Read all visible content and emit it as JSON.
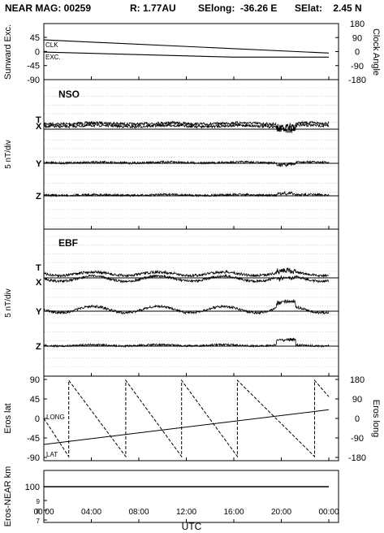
{
  "header": {
    "label": "NEAR MAG: 00259",
    "r": "R: 1.77AU",
    "selong": "SElong:  -36.26 E",
    "selat": "SElat:    2.45 N"
  },
  "x_axis": {
    "label": "UTC",
    "ticks": [
      "00:00",
      "04:00",
      "08:00",
      "12:00",
      "16:00",
      "20:00",
      "00:00"
    ]
  },
  "chart_data": [
    {
      "type": "line",
      "panel": "angles",
      "ylabel": "Sunward Exc.",
      "ylabel_right": "Clock Angle",
      "yticks_left": [
        "45",
        "0",
        "-45",
        "-90"
      ],
      "yticks_right": [
        "180",
        "90",
        "0",
        "-90",
        "-180"
      ],
      "ylim": [
        -90,
        90
      ],
      "series": [
        {
          "name": "CLK",
          "x": [
            0,
            24
          ],
          "y": [
            37,
            -5
          ]
        },
        {
          "name": "EXC.",
          "x": [
            0,
            16,
            24
          ],
          "y": [
            -2,
            -18,
            -18
          ]
        }
      ]
    },
    {
      "type": "line",
      "panel": "NSO",
      "title": "NSO",
      "ylabel": "5 nT/div",
      "traces": [
        "T",
        "X",
        "Y",
        "Z"
      ]
    },
    {
      "type": "line",
      "panel": "EBF",
      "title": "EBF",
      "ylabel": "5 nT/div",
      "traces": [
        "T",
        "X",
        "Y",
        "Z"
      ]
    },
    {
      "type": "line",
      "panel": "eros",
      "ylabel": "Eros lat",
      "ylabel_right": "Eros long",
      "yticks_left": [
        "90",
        "45",
        "0",
        "-45",
        "-90"
      ],
      "yticks_right": [
        "180",
        "90",
        "0",
        "-90",
        "-180"
      ],
      "ylim": [
        -90,
        90
      ],
      "series": [
        {
          "name": "LONG",
          "style": "dashed",
          "x": [
            0,
            2.1,
            2.1,
            6.9,
            6.9,
            11.6,
            11.6,
            16.3,
            16.3,
            22.8,
            22.8,
            24
          ],
          "y": [
            0,
            -88,
            88,
            -88,
            88,
            -88,
            88,
            -88,
            88,
            -88,
            88,
            50
          ]
        },
        {
          "name": "LAT",
          "style": "solid",
          "x": [
            0,
            24
          ],
          "y": [
            -60,
            20
          ]
        }
      ]
    },
    {
      "type": "line",
      "panel": "range",
      "ylabel": "Eros-NEAR km",
      "yticks_left": [
        "100",
        "9",
        "8",
        "7"
      ],
      "series": [
        {
          "name": "",
          "x": [
            0,
            24
          ],
          "y": [
            100,
            100
          ]
        }
      ]
    }
  ]
}
